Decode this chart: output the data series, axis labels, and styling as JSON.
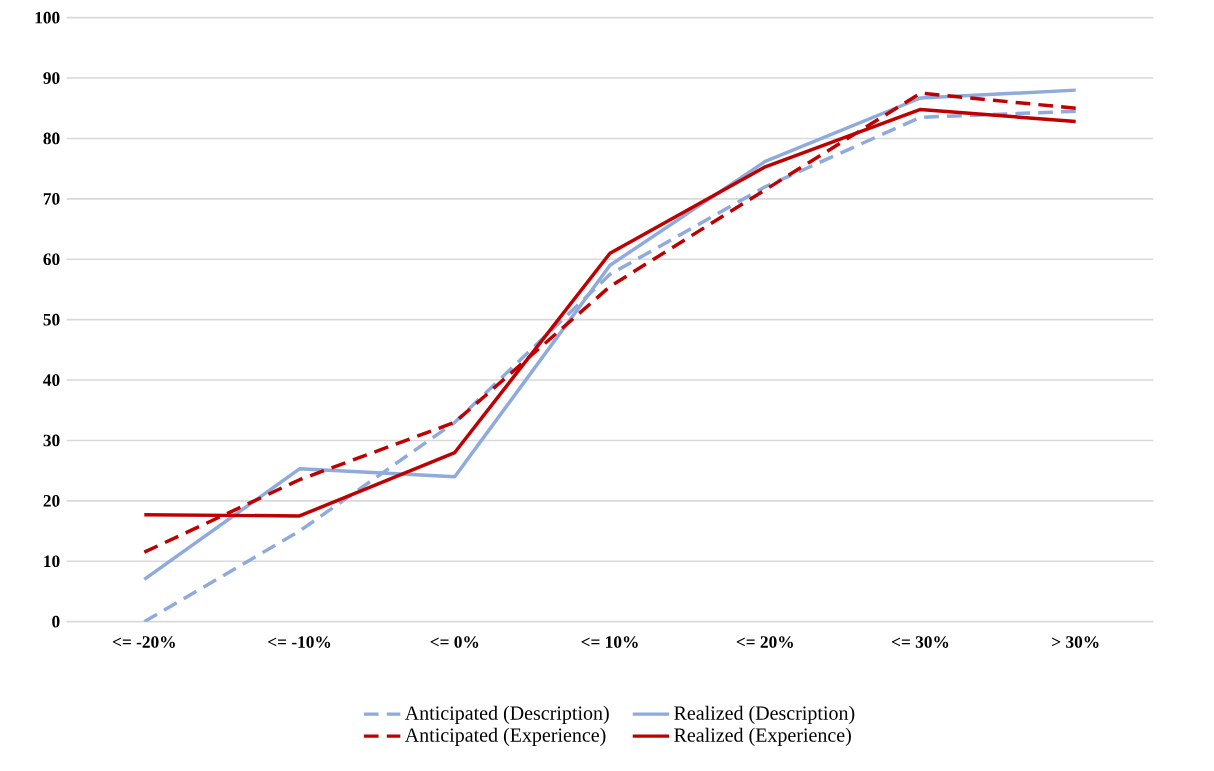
{
  "chart_data": {
    "type": "line",
    "categories": [
      "<= -20%",
      "<= -10%",
      "<= 0%",
      "<= 10%",
      "<= 20%",
      "<= 30%",
      "> 30%"
    ],
    "ylim": [
      0,
      100
    ],
    "yticks": [
      0,
      10,
      20,
      30,
      40,
      50,
      60,
      70,
      80,
      90,
      100
    ],
    "grid": "y",
    "legend": "bottom",
    "series": [
      {
        "name": "Anticipated (Description)",
        "color": "#8faadc",
        "line_style": "dashed",
        "values": [
          0,
          15,
          33,
          57.5,
          72,
          83.5,
          84.5
        ]
      },
      {
        "name": "Realized (Description)",
        "color": "#8faadc",
        "line_style": "solid",
        "values": [
          7,
          25.3,
          24,
          59,
          76.2,
          86.7,
          88
        ]
      },
      {
        "name": "Anticipated (Experience)",
        "color": "#c00000",
        "line_style": "dashed",
        "values": [
          11.5,
          23.5,
          33,
          55.5,
          71.5,
          87.5,
          85
        ]
      },
      {
        "name": "Realized (Experience)",
        "color": "#c00000",
        "line_style": "solid",
        "values": [
          17.7,
          17.5,
          28,
          61,
          75.3,
          84.8,
          82.8
        ]
      }
    ]
  }
}
